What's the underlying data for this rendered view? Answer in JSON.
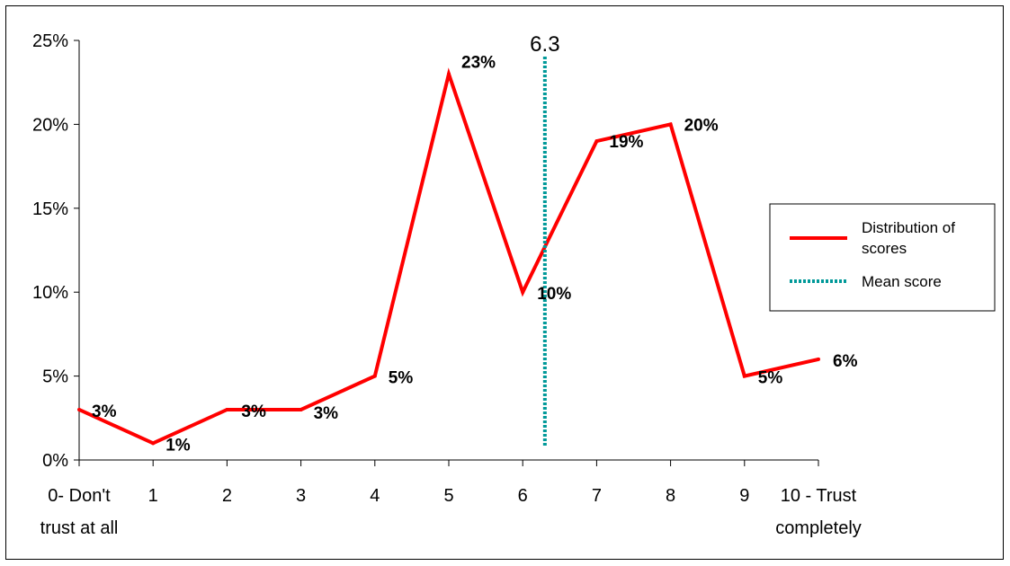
{
  "chart_data": {
    "type": "line",
    "categories": [
      "0- Don't trust at all",
      "1",
      "2",
      "3",
      "4",
      "5",
      "6",
      "7",
      "8",
      "9",
      "10 - Trust completely"
    ],
    "category_lines": [
      [
        "0- Don't",
        "trust at all"
      ],
      [
        "1"
      ],
      [
        "2"
      ],
      [
        "3"
      ],
      [
        "4"
      ],
      [
        "5"
      ],
      [
        "6"
      ],
      [
        "7"
      ],
      [
        "8"
      ],
      [
        "9"
      ],
      [
        "10 - Trust",
        "completely"
      ]
    ],
    "series": [
      {
        "name": "Distribution of scores",
        "color": "#ff0000",
        "values": [
          3,
          1,
          3,
          3,
          5,
          23,
          10,
          19,
          20,
          5,
          6
        ],
        "labels": [
          "3%",
          "1%",
          "3%",
          "3%",
          "5%",
          "23%",
          "10%",
          "19%",
          "20%",
          "5%",
          "6%"
        ]
      }
    ],
    "mean": {
      "name": "Mean score",
      "value": 6.3,
      "label": "6.3",
      "color": "#009999"
    },
    "ylim": [
      0,
      25
    ],
    "yticks": [
      0,
      5,
      10,
      15,
      20,
      25
    ],
    "ytick_labels": [
      "0%",
      "5%",
      "10%",
      "15%",
      "20%",
      "25%"
    ],
    "legend": {
      "position": "right",
      "entries": [
        {
          "lines": [
            "Distribution of scores"
          ],
          "display_lines": [
            "Distribution of",
            "scores"
          ],
          "style": "solid",
          "color": "#ff0000"
        },
        {
          "lines": [
            "Mean score"
          ],
          "display_lines": [
            "Mean score"
          ],
          "style": "dotted",
          "color": "#009999"
        }
      ]
    },
    "grid": false
  }
}
